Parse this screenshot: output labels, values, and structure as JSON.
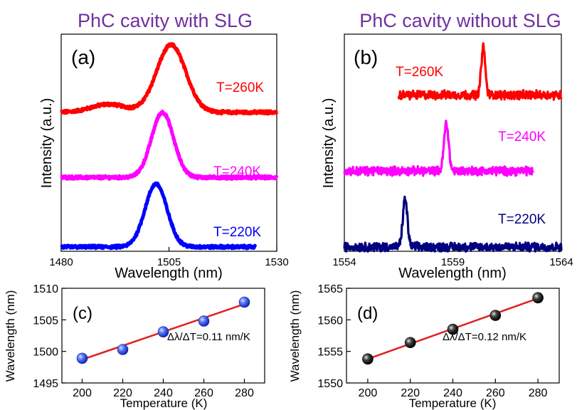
{
  "headers": {
    "left": "PhC cavity with SLG",
    "right": "PhC cavity without SLG",
    "color": "#7030a0"
  },
  "chart_data": [
    {
      "id": "a",
      "type": "line",
      "panel_label": "(a)",
      "xlabel": "Wavelength (nm)",
      "ylabel": "Intensity (a.u.)",
      "xlim": [
        1480,
        1530
      ],
      "xticks": [
        "1480",
        "1505",
        "1530"
      ],
      "yticks_shown": false,
      "series": [
        {
          "name": "T=260K",
          "color": "#ff0000",
          "peak_center": 1505.5,
          "fwhm": 8.0,
          "x_start": 1480,
          "x_end": 1530,
          "shoulder_center": 1491,
          "shoulder_level": 0.12,
          "offset": 0.64,
          "height": 0.31
        },
        {
          "name": "T=240K",
          "color": "#ff00ff",
          "peak_center": 1503.5,
          "fwhm": 6.0,
          "x_start": 1480,
          "x_end": 1530,
          "offset": 0.34,
          "height": 0.3
        },
        {
          "name": "T=220K",
          "color": "#0000ff",
          "peak_center": 1502.0,
          "fwhm": 6.0,
          "x_start": 1480,
          "x_end": 1525,
          "offset": 0.02,
          "height": 0.29
        }
      ]
    },
    {
      "id": "b",
      "type": "line",
      "panel_label": "(b)",
      "xlabel": "Wavelength (nm)",
      "ylabel": "Intensity (a.u.)",
      "xlim": [
        1554,
        1564
      ],
      "xticks": [
        "1554",
        "1559",
        "1564"
      ],
      "yticks_shown": false,
      "series": [
        {
          "name": "T=260K",
          "color": "#ff0000",
          "peak_center": 1560.4,
          "fwhm": 0.22,
          "x_start": 1556.5,
          "x_end": 1564,
          "offset": 0.72,
          "height": 0.22
        },
        {
          "name": "T=240K",
          "color": "#ff00ff",
          "peak_center": 1558.7,
          "fwhm": 0.25,
          "x_start": 1554,
          "x_end": 1562.7,
          "offset": 0.37,
          "height": 0.22
        },
        {
          "name": "T=220K",
          "color": "#000080",
          "peak_center": 1556.8,
          "fwhm": 0.25,
          "x_start": 1554,
          "x_end": 1564,
          "offset": 0.02,
          "height": 0.22
        }
      ]
    },
    {
      "id": "c",
      "type": "scatter",
      "panel_label": "(c)",
      "xlabel": "Temperature (K)",
      "ylabel": "Wavelength (nm)",
      "xlim": [
        190,
        290
      ],
      "ylim": [
        1495,
        1510
      ],
      "xticks": [
        200,
        220,
        240,
        260,
        280
      ],
      "yticks": [
        1495,
        1500,
        1505,
        1510
      ],
      "x": [
        200,
        220,
        240,
        260,
        280
      ],
      "y": [
        1498.9,
        1500.3,
        1503.1,
        1504.8,
        1507.8
      ],
      "marker_color": "#3355ee",
      "fit": {
        "x": [
          200,
          280
        ],
        "y": [
          1498.7,
          1507.5
        ],
        "color": "#e02020"
      },
      "annotation": "Δλ/ΔT=0.11 nm/K"
    },
    {
      "id": "d",
      "type": "scatter",
      "panel_label": "(d)",
      "xlabel": "Temperature (K)",
      "ylabel": "Wavelength (nm)",
      "xlim": [
        190,
        290
      ],
      "ylim": [
        1550,
        1565
      ],
      "xticks": [
        200,
        220,
        240,
        260,
        280
      ],
      "yticks": [
        1550,
        1555,
        1560,
        1565
      ],
      "x": [
        200,
        220,
        240,
        260,
        280
      ],
      "y": [
        1553.8,
        1556.4,
        1558.5,
        1560.7,
        1563.5
      ],
      "marker_color": "#222222",
      "fit": {
        "x": [
          200,
          280
        ],
        "y": [
          1553.8,
          1563.4
        ],
        "color": "#e02020"
      },
      "annotation": "Δλ/ΔT=0.12 nm/K"
    }
  ]
}
